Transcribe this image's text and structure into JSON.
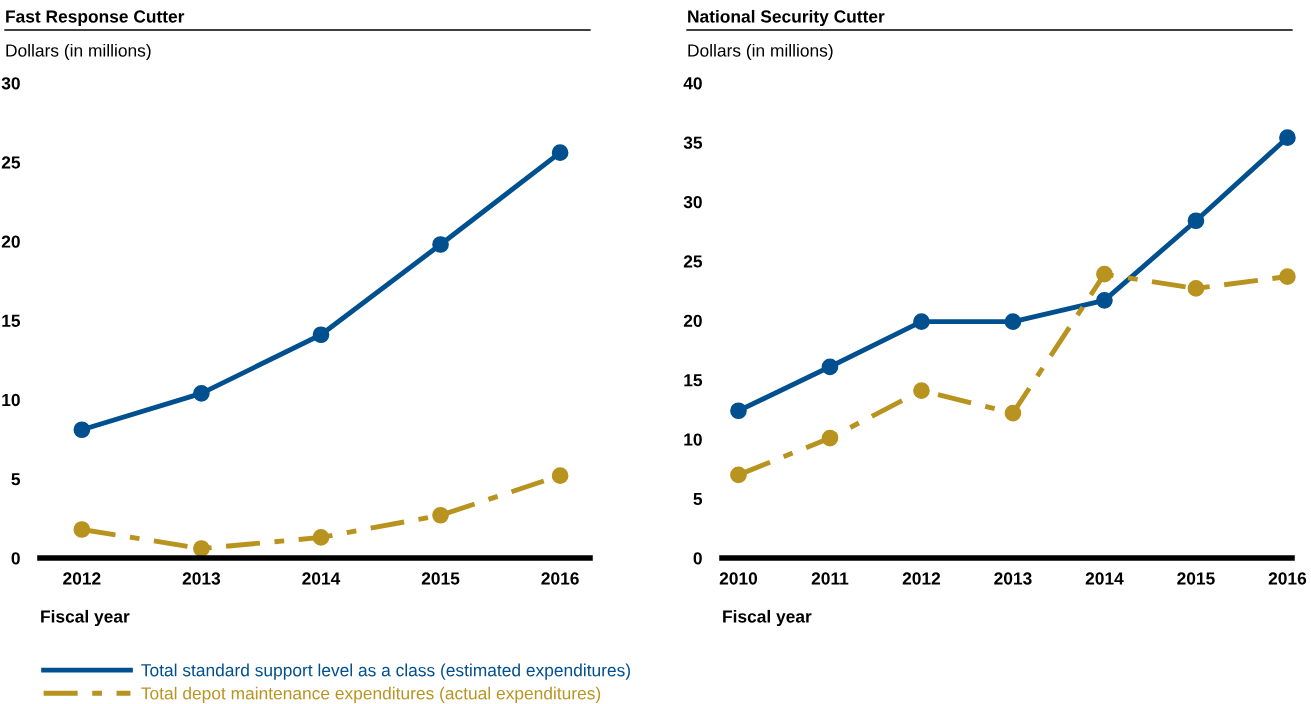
{
  "chart_data": [
    {
      "type": "line",
      "title": "Fast Response Cutter",
      "ylabel": "Dollars (in millions)",
      "xlabel": "Fiscal year",
      "categories": [
        "2012",
        "2013",
        "2014",
        "2015",
        "2016"
      ],
      "ylim": [
        0,
        30
      ],
      "yticks": [
        0,
        5,
        10,
        15,
        20,
        25,
        30
      ],
      "grid": false,
      "marker": "circle",
      "legend": "bottom",
      "series": [
        {
          "name": "Total standard support level as a class (estimated expenditures)",
          "color": "#00508f",
          "line_style": "solid",
          "values": [
            8.1,
            10.4,
            14.1,
            19.8,
            25.6
          ]
        },
        {
          "name": "Total depot maintenance expenditures (actual expenditures)",
          "color": "#b8931f",
          "line_style": "dashdot",
          "values": [
            1.8,
            0.6,
            1.3,
            2.7,
            5.2
          ]
        }
      ]
    },
    {
      "type": "line",
      "title": "National Security Cutter",
      "ylabel": "Dollars (in millions)",
      "xlabel": "Fiscal year",
      "categories": [
        "2010",
        "2011",
        "2012",
        "2013",
        "2014",
        "2015",
        "2016"
      ],
      "ylim": [
        0,
        40
      ],
      "yticks": [
        0,
        5,
        10,
        15,
        20,
        25,
        30,
        35,
        40
      ],
      "grid": false,
      "marker": "circle",
      "series": [
        {
          "color": "#00508f",
          "line_style": "solid",
          "values": [
            12.4,
            16.1,
            19.9,
            19.9,
            21.7,
            28.4,
            35.4
          ]
        },
        {
          "color": "#b8931f",
          "line_style": "dashdot",
          "values": [
            7.0,
            10.1,
            14.1,
            12.2,
            23.9,
            22.7,
            23.7
          ]
        }
      ]
    }
  ]
}
